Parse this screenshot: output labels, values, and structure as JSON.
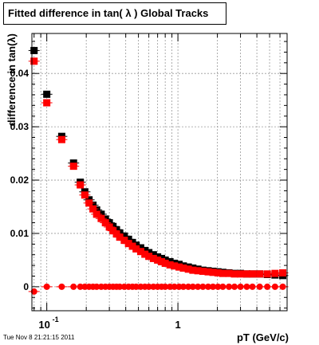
{
  "chart_data": {
    "type": "scatter",
    "title": "Fitted difference in tan( λ )  Global Tracks",
    "xlabel": "pT (GeV/c)",
    "ylabel": "difference in tan(λ)",
    "x_scale": "log",
    "xlim": [
      0.077,
      6.8
    ],
    "ylim": [
      -0.0045,
      0.0475
    ],
    "grid": true,
    "x_tick_labels": [
      {
        "base": "10",
        "exp": "-1",
        "x": 0.1
      },
      {
        "base": "1",
        "exp": "",
        "x": 1
      }
    ],
    "y_tick_labels": [
      {
        "label": "0",
        "y": 0
      },
      {
        "label": "0.01",
        "y": 0.01
      },
      {
        "label": "0.02",
        "y": 0.02
      },
      {
        "label": "0.03",
        "y": 0.03
      },
      {
        "label": "0.04",
        "y": 0.04
      }
    ],
    "series": [
      {
        "color": "#000000",
        "points": [
          [
            0.08,
            0.0443
          ],
          [
            0.1,
            0.0361
          ],
          [
            0.13,
            0.0282
          ],
          [
            0.16,
            0.0232
          ],
          [
            0.18,
            0.0196
          ],
          [
            0.195,
            0.0178
          ],
          [
            0.21,
            0.0163
          ],
          [
            0.225,
            0.0153
          ],
          [
            0.24,
            0.0144
          ],
          [
            0.26,
            0.0136
          ],
          [
            0.28,
            0.0127
          ],
          [
            0.3,
            0.012
          ],
          [
            0.32,
            0.0113
          ],
          [
            0.34,
            0.0107
          ],
          [
            0.36,
            0.0101
          ],
          [
            0.39,
            0.0095
          ],
          [
            0.42,
            0.0089
          ],
          [
            0.45,
            0.0083
          ],
          [
            0.48,
            0.0078
          ],
          [
            0.52,
            0.0073
          ],
          [
            0.56,
            0.0068
          ],
          [
            0.6,
            0.0064
          ],
          [
            0.65,
            0.006
          ],
          [
            0.7,
            0.0056
          ],
          [
            0.75,
            0.0053
          ],
          [
            0.8,
            0.005
          ],
          [
            0.87,
            0.0047
          ],
          [
            0.94,
            0.0044
          ],
          [
            1.02,
            0.0042
          ],
          [
            1.1,
            0.0039
          ],
          [
            1.2,
            0.0037
          ],
          [
            1.3,
            0.0035
          ],
          [
            1.42,
            0.0033
          ],
          [
            1.55,
            0.0031
          ],
          [
            1.7,
            0.003
          ],
          [
            1.85,
            0.0029
          ],
          [
            2.02,
            0.0028
          ],
          [
            2.2,
            0.0027
          ],
          [
            2.45,
            0.0026
          ],
          [
            2.7,
            0.0025
          ],
          [
            3.0,
            0.0025
          ],
          [
            3.35,
            0.0024
          ],
          [
            3.7,
            0.0024
          ],
          [
            4.2,
            0.0024
          ],
          [
            4.8,
            0.0023
          ],
          [
            5.5,
            0.0022
          ],
          [
            6.3,
            0.0021
          ]
        ]
      },
      {
        "color": "#ff0000",
        "points": [
          [
            0.08,
            0.0423
          ],
          [
            0.1,
            0.0345
          ],
          [
            0.13,
            0.0276
          ],
          [
            0.16,
            0.0226
          ],
          [
            0.18,
            0.0191
          ],
          [
            0.195,
            0.0172
          ],
          [
            0.21,
            0.0157
          ],
          [
            0.225,
            0.0146
          ],
          [
            0.24,
            0.0136
          ],
          [
            0.26,
            0.0128
          ],
          [
            0.28,
            0.012
          ],
          [
            0.3,
            0.0112
          ],
          [
            0.32,
            0.0105
          ],
          [
            0.34,
            0.0099
          ],
          [
            0.36,
            0.0093
          ],
          [
            0.39,
            0.0087
          ],
          [
            0.42,
            0.0081
          ],
          [
            0.45,
            0.0076
          ],
          [
            0.48,
            0.0071
          ],
          [
            0.52,
            0.0066
          ],
          [
            0.56,
            0.0061
          ],
          [
            0.6,
            0.0057
          ],
          [
            0.65,
            0.0053
          ],
          [
            0.7,
            0.005
          ],
          [
            0.75,
            0.0047
          ],
          [
            0.8,
            0.0044
          ],
          [
            0.87,
            0.0041
          ],
          [
            0.94,
            0.0039
          ],
          [
            1.02,
            0.0037
          ],
          [
            1.1,
            0.0035
          ],
          [
            1.2,
            0.0033
          ],
          [
            1.3,
            0.0031
          ],
          [
            1.42,
            0.003
          ],
          [
            1.55,
            0.0029
          ],
          [
            1.7,
            0.0028
          ],
          [
            1.85,
            0.0027
          ],
          [
            2.02,
            0.0026
          ],
          [
            2.2,
            0.0025
          ],
          [
            2.45,
            0.0025
          ],
          [
            2.7,
            0.0024
          ],
          [
            3.0,
            0.0024
          ],
          [
            3.35,
            0.0024
          ],
          [
            3.7,
            0.0024
          ],
          [
            4.2,
            0.0024
          ],
          [
            4.8,
            0.0024
          ],
          [
            5.5,
            0.0025
          ],
          [
            6.3,
            0.0026
          ]
        ]
      },
      {
        "color": "#ff0000",
        "points": [
          [
            0.08,
            -0.0009
          ],
          [
            0.1,
            0.0
          ],
          [
            0.13,
            0.0
          ],
          [
            0.16,
            0.0
          ],
          [
            0.18,
            0.0
          ],
          [
            0.195,
            0.0
          ],
          [
            0.21,
            0.0
          ],
          [
            0.225,
            0.0
          ],
          [
            0.24,
            0.0
          ],
          [
            0.26,
            0.0
          ],
          [
            0.28,
            0.0
          ],
          [
            0.3,
            0.0
          ],
          [
            0.32,
            0.0
          ],
          [
            0.34,
            0.0
          ],
          [
            0.36,
            0.0
          ],
          [
            0.39,
            0.0
          ],
          [
            0.42,
            0.0
          ],
          [
            0.45,
            0.0
          ],
          [
            0.48,
            0.0
          ],
          [
            0.52,
            0.0
          ],
          [
            0.56,
            0.0
          ],
          [
            0.6,
            0.0
          ],
          [
            0.65,
            0.0
          ],
          [
            0.7,
            0.0
          ],
          [
            0.75,
            0.0
          ],
          [
            0.8,
            0.0
          ],
          [
            0.87,
            0.0
          ],
          [
            0.94,
            0.0
          ],
          [
            1.02,
            0.0
          ],
          [
            1.1,
            0.0
          ],
          [
            1.2,
            0.0
          ],
          [
            1.3,
            0.0
          ],
          [
            1.42,
            0.0
          ],
          [
            1.55,
            0.0
          ],
          [
            1.7,
            0.0
          ],
          [
            1.85,
            0.0
          ],
          [
            2.02,
            0.0
          ],
          [
            2.2,
            0.0
          ],
          [
            2.45,
            0.0
          ],
          [
            2.7,
            0.0
          ],
          [
            3.0,
            0.0
          ],
          [
            3.35,
            0.0
          ],
          [
            3.7,
            0.0
          ],
          [
            4.2,
            0.0
          ],
          [
            4.8,
            0.0
          ],
          [
            5.5,
            0.0
          ],
          [
            6.3,
            0.0
          ]
        ]
      }
    ]
  },
  "timestamp": "Tue Nov  8 21:21:15 2011"
}
